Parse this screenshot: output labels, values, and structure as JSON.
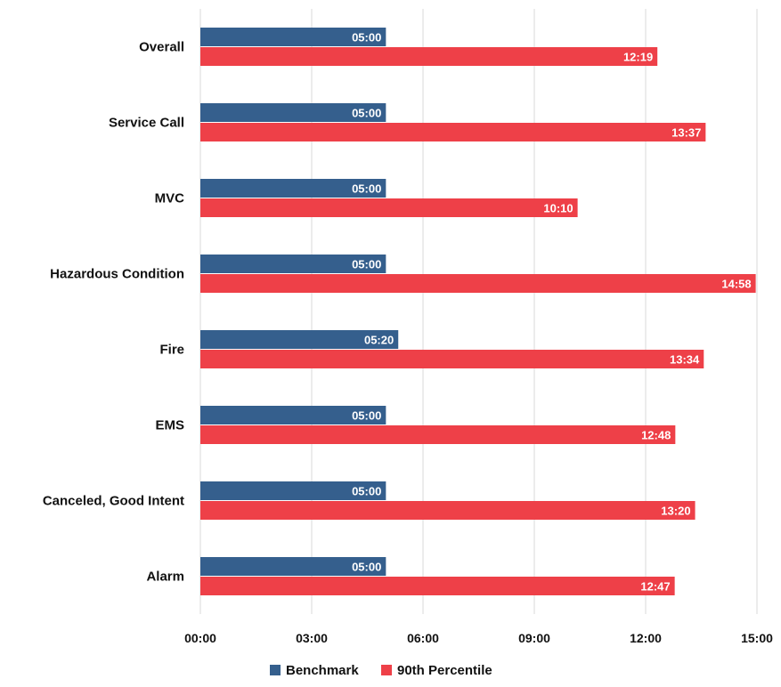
{
  "chart_data": {
    "type": "bar",
    "orientation": "horizontal",
    "title": "",
    "xlabel": "",
    "ylabel": "",
    "categories": [
      "Overall",
      "Service Call",
      "MVC",
      "Hazardous Condition",
      "Fire",
      "EMS",
      "Canceled, Good Intent",
      "Alarm"
    ],
    "series": [
      {
        "name": "Benchmark",
        "color": "#355f8d",
        "values": [
          300,
          300,
          300,
          300,
          320,
          300,
          300,
          300
        ],
        "labels": [
          "05:00",
          "05:00",
          "05:00",
          "05:00",
          "05:20",
          "05:00",
          "05:00",
          "05:00"
        ]
      },
      {
        "name": "90th Percentile",
        "color": "#ee4048",
        "values": [
          739,
          817,
          610,
          898,
          814,
          768,
          800,
          767
        ],
        "labels": [
          "12:19",
          "13:37",
          "10:10",
          "14:58",
          "13:34",
          "12:48",
          "13:20",
          "12:47"
        ]
      }
    ],
    "x_unit": "seconds",
    "xlim": [
      0,
      900
    ],
    "x_ticks": [
      0,
      180,
      360,
      540,
      720,
      900
    ],
    "x_tick_labels": [
      "00:00",
      "03:00",
      "06:00",
      "09:00",
      "12:00",
      "15:00"
    ],
    "grid": "vertical",
    "legend": "bottom-center"
  }
}
